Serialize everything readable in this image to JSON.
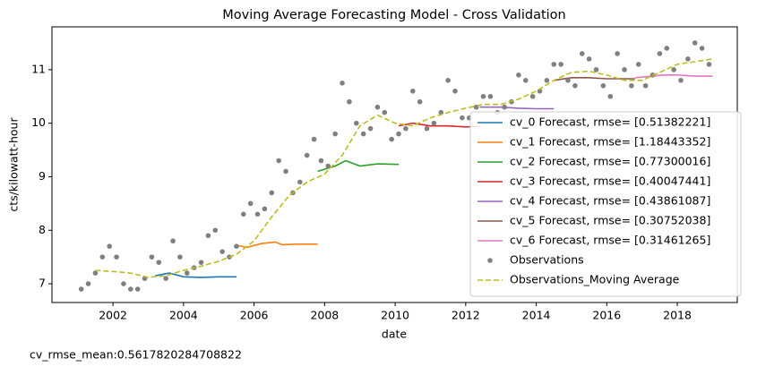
{
  "chart_data": {
    "type": "line",
    "title": "Moving Average Forecasting Model - Cross Validation",
    "xlabel": "date",
    "ylabel": "cts/kilowatt-hour",
    "annotation": "cv_rmse_mean:0.5617820284708822",
    "xlim": [
      2000.27,
      2019.7
    ],
    "xticks": [
      2002,
      2004,
      2006,
      2008,
      2010,
      2012,
      2014,
      2016,
      2018
    ],
    "ylim": [
      6.65,
      11.8
    ],
    "yticks": [
      7,
      8,
      9,
      10,
      11
    ],
    "legend": "lower right",
    "series": [
      {
        "name": "cv_0 Forecast, rmse= [0.51382221]",
        "type": "line",
        "color": "#1f77b4",
        "x": [
          2003.2,
          2003.6,
          2004.0,
          2004.5,
          2005.0,
          2005.5
        ],
        "values": [
          7.15,
          7.2,
          7.13,
          7.12,
          7.13,
          7.13
        ]
      },
      {
        "name": "cv_1 Forecast, rmse= [1.18443352]",
        "type": "line",
        "color": "#ff7f0e",
        "x": [
          2005.5,
          2005.8,
          2006.2,
          2006.6,
          2006.8,
          2007.2,
          2007.8
        ],
        "values": [
          7.72,
          7.68,
          7.75,
          7.78,
          7.73,
          7.74,
          7.74
        ]
      },
      {
        "name": "cv_2 Forecast, rmse= [0.77300016]",
        "type": "line",
        "color": "#2ca02c",
        "x": [
          2007.8,
          2008.3,
          2008.6,
          2009.0,
          2009.5,
          2010.1
        ],
        "values": [
          9.1,
          9.2,
          9.3,
          9.2,
          9.24,
          9.23
        ]
      },
      {
        "name": "cv_3 Forecast, rmse= [0.40047441]",
        "type": "line",
        "color": "#d62728",
        "x": [
          2010.1,
          2010.5,
          2011.0,
          2011.5,
          2012.0,
          2012.4
        ],
        "values": [
          9.95,
          10.0,
          9.95,
          9.95,
          9.93,
          9.94
        ]
      },
      {
        "name": "cv_4 Forecast, rmse= [0.43861087]",
        "type": "line",
        "color": "#9467bd",
        "x": [
          2012.4,
          2013.0,
          2013.5,
          2014.0,
          2014.5
        ],
        "values": [
          10.3,
          10.3,
          10.28,
          10.27,
          10.27
        ]
      },
      {
        "name": "cv_5 Forecast, rmse= [0.30752038]",
        "type": "line",
        "color": "#8c564b",
        "x": [
          2014.5,
          2015.0,
          2015.5,
          2016.0,
          2016.8
        ],
        "values": [
          10.8,
          10.85,
          10.85,
          10.83,
          10.83
        ]
      },
      {
        "name": "cv_6 Forecast, rmse= [0.31461265]",
        "type": "line",
        "color": "#e377c2",
        "x": [
          2016.8,
          2017.3,
          2017.6,
          2018.0,
          2018.5,
          2019.0
        ],
        "values": [
          10.85,
          10.88,
          10.9,
          10.9,
          10.88,
          10.88
        ]
      },
      {
        "name": "Observations",
        "type": "scatter",
        "color": "#808080",
        "x": [
          2001.1,
          2001.3,
          2001.5,
          2001.7,
          2001.9,
          2002.1,
          2002.3,
          2002.5,
          2002.7,
          2002.9,
          2003.1,
          2003.3,
          2003.5,
          2003.7,
          2003.9,
          2004.1,
          2004.3,
          2004.5,
          2004.7,
          2004.9,
          2005.1,
          2005.3,
          2005.5,
          2005.7,
          2005.9,
          2006.1,
          2006.3,
          2006.5,
          2006.7,
          2006.9,
          2007.1,
          2007.3,
          2007.5,
          2007.7,
          2007.9,
          2008.1,
          2008.3,
          2008.5,
          2008.7,
          2008.9,
          2009.1,
          2009.3,
          2009.5,
          2009.7,
          2009.9,
          2010.1,
          2010.3,
          2010.5,
          2010.7,
          2010.9,
          2011.1,
          2011.3,
          2011.5,
          2011.7,
          2011.9,
          2012.1,
          2012.3,
          2012.5,
          2012.7,
          2012.9,
          2013.1,
          2013.3,
          2013.5,
          2013.7,
          2013.9,
          2014.1,
          2014.3,
          2014.5,
          2014.7,
          2014.9,
          2015.1,
          2015.3,
          2015.5,
          2015.7,
          2015.9,
          2016.1,
          2016.3,
          2016.5,
          2016.7,
          2016.9,
          2017.1,
          2017.3,
          2017.5,
          2017.7,
          2017.9,
          2018.1,
          2018.3,
          2018.5,
          2018.7,
          2018.9
        ],
        "values": [
          6.9,
          7.0,
          7.2,
          7.5,
          7.7,
          7.5,
          7.0,
          6.9,
          6.9,
          7.1,
          7.5,
          7.4,
          7.1,
          7.8,
          7.5,
          7.2,
          7.3,
          7.4,
          7.9,
          8.0,
          7.6,
          7.5,
          7.7,
          8.3,
          8.5,
          8.3,
          8.4,
          8.7,
          9.3,
          9.1,
          8.7,
          8.9,
          9.4,
          9.7,
          9.3,
          9.2,
          9.8,
          10.75,
          10.4,
          10.0,
          9.8,
          9.9,
          10.3,
          10.2,
          9.7,
          9.8,
          9.9,
          10.6,
          10.4,
          9.9,
          10.0,
          10.2,
          10.8,
          10.6,
          10.1,
          10.1,
          10.3,
          10.5,
          10.5,
          10.2,
          10.3,
          10.4,
          10.9,
          10.8,
          10.5,
          10.6,
          10.8,
          11.1,
          11.1,
          10.8,
          10.7,
          11.3,
          11.2,
          11.0,
          10.7,
          10.5,
          11.3,
          11.0,
          10.7,
          11.1,
          10.7,
          10.9,
          11.3,
          11.4,
          11.0,
          10.8,
          11.2,
          11.5,
          11.4,
          11.1
        ]
      },
      {
        "name": "Observations_Moving Average",
        "type": "line",
        "linestyle": "--",
        "color": "#bcbd22",
        "x": [
          2001.5,
          2002,
          2002.5,
          2003,
          2003.5,
          2004,
          2004.5,
          2005,
          2005.5,
          2006,
          2006.5,
          2007,
          2007.5,
          2008,
          2008.5,
          2009,
          2009.5,
          2010,
          2010.5,
          2011,
          2011.5,
          2012,
          2012.5,
          2013,
          2013.5,
          2014,
          2014.5,
          2015,
          2015.5,
          2016,
          2016.5,
          2017,
          2017.5,
          2018,
          2018.5,
          2019
        ],
        "values": [
          7.25,
          7.23,
          7.2,
          7.12,
          7.15,
          7.25,
          7.33,
          7.42,
          7.55,
          7.8,
          8.25,
          8.65,
          8.9,
          9.05,
          9.4,
          9.95,
          10.15,
          10.0,
          9.95,
          10.1,
          10.2,
          10.28,
          10.35,
          10.35,
          10.45,
          10.6,
          10.8,
          10.95,
          10.97,
          10.9,
          10.8,
          10.8,
          10.95,
          11.1,
          11.15,
          11.2
        ]
      }
    ]
  }
}
